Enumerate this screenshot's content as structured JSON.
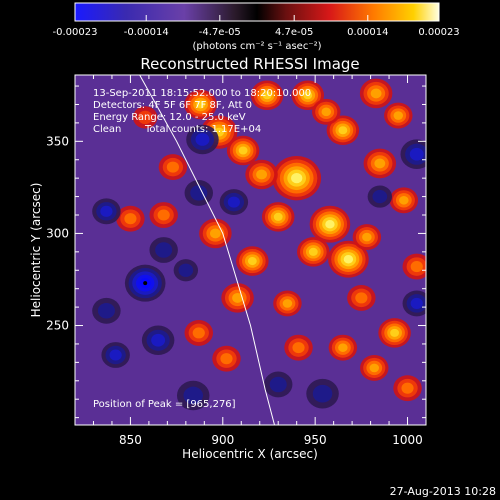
{
  "chart_data": {
    "type": "heatmap",
    "title": "Reconstructed RHESSI Image",
    "xlabel": "Heliocentric X (arcsec)",
    "ylabel": "Heliocentric Y (arcsec)",
    "xlim": [
      820,
      1010
    ],
    "ylim": [
      196,
      386
    ],
    "x_ticks": [
      850,
      900,
      950,
      1000
    ],
    "y_ticks": [
      250,
      300,
      350
    ],
    "colorbar": {
      "ticks": [
        "-0.00023",
        "-0.00014",
        "-4.7e-05",
        "4.7e-05",
        "0.00014",
        "0.00023"
      ],
      "tick_values": [
        -0.00023,
        -0.00014,
        -4.7e-05,
        4.7e-05,
        0.00014,
        0.00023
      ],
      "range": [
        -0.00023,
        0.00023
      ],
      "unit_label": "(photons cm⁻² s⁻¹ asec⁻²)"
    },
    "annotations": [
      "13-Sep-2011 18:15:52.000 to 18:20:10.000",
      "Detectors: 4F 5F 6F 7F 8F, Att 0",
      "Energy Range: 12.0 - 25.0 keV",
      "Clean",
      "Total counts: 1.17E+04"
    ],
    "peak_label": "Position of Peak = [965,276]",
    "limb": [
      [
        855,
        386
      ],
      [
        875,
        350
      ],
      [
        900,
        300
      ],
      [
        915,
        250
      ],
      [
        923,
        215
      ],
      [
        928,
        196
      ]
    ],
    "blobs": [
      [
        940,
        330,
        1.0,
        12
      ],
      [
        958,
        305,
        0.95,
        10
      ],
      [
        968,
        286,
        0.95,
        10
      ],
      [
        930,
        309,
        0.85,
        8
      ],
      [
        949,
        290,
        0.8,
        8
      ],
      [
        916,
        285,
        0.75,
        8
      ],
      [
        921,
        332,
        0.7,
        8
      ],
      [
        898,
        355,
        0.85,
        9
      ],
      [
        911,
        345,
        0.75,
        8
      ],
      [
        888,
        370,
        0.75,
        8
      ],
      [
        924,
        375,
        0.8,
        8
      ],
      [
        965,
        356,
        0.9,
        8
      ],
      [
        946,
        375,
        0.75,
        8
      ],
      [
        956,
        366,
        0.6,
        7
      ],
      [
        983,
        376,
        0.7,
        8
      ],
      [
        995,
        364,
        0.6,
        7
      ],
      [
        985,
        338,
        0.7,
        8
      ],
      [
        998,
        318,
        0.6,
        7
      ],
      [
        978,
        298,
        0.6,
        7
      ],
      [
        896,
        300,
        0.6,
        8
      ],
      [
        908,
        265,
        0.6,
        8
      ],
      [
        935,
        262,
        0.6,
        7
      ],
      [
        941,
        238,
        0.5,
        7
      ],
      [
        965,
        238,
        0.6,
        7
      ],
      [
        993,
        246,
        0.75,
        8
      ],
      [
        982,
        227,
        0.65,
        7
      ],
      [
        1000,
        216,
        0.55,
        7
      ],
      [
        873,
        336,
        0.55,
        7
      ],
      [
        868,
        310,
        0.45,
        7
      ],
      [
        850,
        308,
        0.5,
        7
      ],
      [
        887,
        246,
        0.45,
        7
      ],
      [
        902,
        232,
        0.45,
        7
      ],
      [
        975,
        265,
        0.5,
        7
      ],
      [
        1005,
        282,
        0.5,
        7
      ],
      [
        858,
        363,
        0.35,
        6
      ],
      [
        858,
        273,
        -1.0,
        10
      ],
      [
        889,
        351,
        -0.6,
        8
      ],
      [
        906,
        317,
        -0.5,
        7
      ],
      [
        887,
        322,
        -0.45,
        7
      ],
      [
        837,
        312,
        -0.55,
        7
      ],
      [
        865,
        242,
        -0.5,
        8
      ],
      [
        842,
        234,
        -0.5,
        7
      ],
      [
        884,
        212,
        -0.45,
        8
      ],
      [
        954,
        213,
        -0.45,
        8
      ],
      [
        1005,
        262,
        -0.5,
        7
      ],
      [
        1005,
        343,
        -0.55,
        8
      ],
      [
        868,
        291,
        -0.4,
        7
      ],
      [
        837,
        258,
        -0.45,
        7
      ],
      [
        930,
        218,
        -0.4,
        7
      ],
      [
        985,
        320,
        -0.35,
        6
      ],
      [
        880,
        280,
        -0.3,
        6
      ]
    ]
  }
}
